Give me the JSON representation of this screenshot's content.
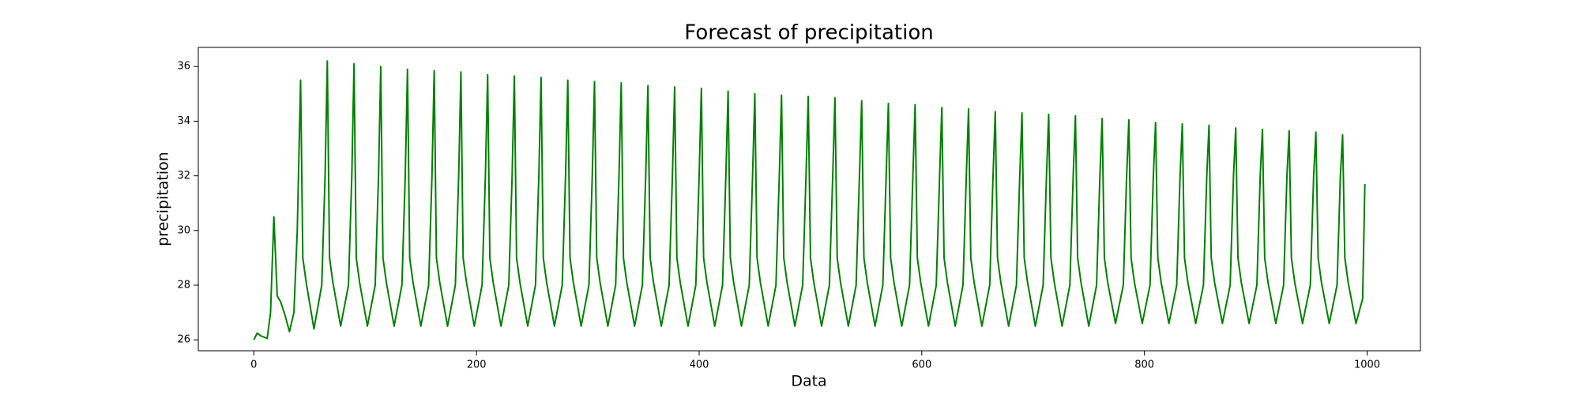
{
  "chart_data": {
    "type": "line",
    "title": "Forecast of precipitation",
    "x_label": "Data",
    "y_label": "precipitation",
    "xlim": [
      -49.9,
      1047.9
    ],
    "ylim": [
      25.6,
      36.7
    ],
    "xticks": [
      0,
      200,
      400,
      600,
      800,
      1000
    ],
    "yticks": [
      26,
      28,
      30,
      32,
      34,
      36
    ],
    "grid": false,
    "series": [
      {
        "color": "#008000",
        "x": [
          0,
          3,
          6,
          9,
          12,
          15,
          18,
          21,
          24,
          28,
          32,
          36,
          39,
          42,
          44,
          47,
          54,
          61,
          64,
          66,
          68,
          71,
          78,
          85,
          88,
          90,
          92,
          95,
          102,
          109,
          112,
          114,
          116,
          119,
          126,
          133,
          136,
          138,
          140,
          143,
          150,
          157,
          160,
          162,
          164,
          167,
          174,
          181,
          184,
          186,
          188,
          191,
          198,
          205,
          208,
          210,
          212,
          215,
          222,
          229,
          232,
          234,
          236,
          239,
          246,
          253,
          256,
          258,
          260,
          263,
          270,
          277,
          280,
          282,
          284,
          287,
          294,
          301,
          304,
          306,
          308,
          311,
          318,
          325,
          328,
          330,
          332,
          335,
          342,
          349,
          352,
          354,
          356,
          359,
          366,
          373,
          376,
          378,
          380,
          383,
          390,
          397,
          400,
          402,
          404,
          407,
          414,
          421,
          424,
          426,
          428,
          431,
          438,
          445,
          448,
          450,
          452,
          455,
          462,
          469,
          472,
          474,
          476,
          479,
          486,
          493,
          496,
          498,
          500,
          503,
          510,
          517,
          520,
          522,
          524,
          527,
          534,
          541,
          544,
          546,
          548,
          551,
          558,
          565,
          568,
          570,
          572,
          575,
          582,
          589,
          592,
          594,
          596,
          599,
          606,
          613,
          616,
          618,
          620,
          623,
          630,
          637,
          640,
          642,
          644,
          647,
          654,
          661,
          664,
          666,
          668,
          671,
          678,
          685,
          688,
          690,
          692,
          695,
          702,
          709,
          712,
          714,
          716,
          719,
          726,
          733,
          736,
          738,
          740,
          743,
          750,
          757,
          760,
          762,
          764,
          767,
          774,
          781,
          784,
          786,
          788,
          791,
          798,
          805,
          808,
          810,
          812,
          815,
          822,
          829,
          832,
          834,
          836,
          839,
          846,
          853,
          856,
          858,
          860,
          863,
          870,
          877,
          880,
          882,
          884,
          887,
          894,
          901,
          904,
          906,
          908,
          911,
          918,
          925,
          928,
          930,
          932,
          935,
          942,
          949,
          952,
          954,
          956,
          959,
          966,
          973,
          976,
          978,
          980,
          983,
          990,
          996,
          998
        ],
        "values": [
          26.0,
          26.25,
          26.15,
          26.1,
          26.05,
          27.0,
          30.5,
          27.6,
          27.4,
          26.9,
          26.3,
          27.0,
          30.0,
          35.5,
          29.0,
          28.1,
          26.4,
          28.0,
          32.0,
          36.2,
          29.0,
          28.1,
          26.5,
          28.0,
          32.0,
          36.1,
          29.0,
          28.1,
          26.5,
          28.0,
          32.0,
          36.0,
          29.0,
          28.1,
          26.5,
          28.0,
          32.0,
          35.9,
          29.0,
          28.1,
          26.5,
          28.0,
          32.0,
          35.85,
          29.0,
          28.1,
          26.5,
          28.0,
          32.0,
          35.8,
          29.0,
          28.1,
          26.5,
          28.0,
          32.0,
          35.7,
          29.0,
          28.1,
          26.5,
          28.0,
          32.0,
          35.65,
          29.0,
          28.1,
          26.5,
          28.0,
          32.0,
          35.6,
          29.0,
          28.1,
          26.5,
          28.0,
          32.0,
          35.5,
          29.0,
          28.1,
          26.5,
          28.0,
          32.0,
          35.45,
          29.0,
          28.1,
          26.5,
          28.0,
          32.0,
          35.4,
          29.0,
          28.1,
          26.5,
          28.0,
          32.0,
          35.3,
          29.0,
          28.1,
          26.5,
          28.0,
          32.0,
          35.25,
          29.0,
          28.1,
          26.5,
          28.0,
          32.0,
          35.2,
          29.0,
          28.1,
          26.5,
          28.0,
          32.0,
          35.1,
          29.0,
          28.1,
          26.5,
          28.0,
          32.0,
          35.0,
          29.0,
          28.1,
          26.5,
          28.0,
          32.0,
          34.95,
          29.0,
          28.1,
          26.5,
          28.0,
          32.0,
          34.9,
          29.0,
          28.1,
          26.5,
          28.0,
          32.0,
          34.85,
          29.0,
          28.1,
          26.5,
          28.0,
          32.0,
          34.75,
          29.0,
          28.1,
          26.5,
          28.0,
          32.0,
          34.65,
          29.0,
          28.1,
          26.5,
          28.0,
          32.0,
          34.6,
          29.0,
          28.1,
          26.5,
          28.0,
          32.0,
          34.5,
          29.0,
          28.1,
          26.5,
          28.0,
          32.0,
          34.45,
          29.0,
          28.1,
          26.5,
          28.0,
          32.0,
          34.35,
          29.0,
          28.1,
          26.5,
          28.0,
          32.0,
          34.3,
          29.0,
          28.1,
          26.5,
          28.0,
          32.0,
          34.25,
          29.0,
          28.1,
          26.5,
          28.0,
          32.0,
          34.2,
          29.0,
          28.1,
          26.5,
          28.0,
          32.0,
          34.1,
          29.0,
          28.1,
          26.6,
          28.0,
          32.0,
          34.05,
          29.0,
          28.1,
          26.6,
          28.0,
          32.0,
          33.95,
          29.0,
          28.1,
          26.6,
          28.0,
          32.0,
          33.9,
          29.0,
          28.1,
          26.6,
          28.0,
          32.0,
          33.85,
          29.0,
          28.1,
          26.6,
          28.0,
          32.0,
          33.75,
          29.0,
          28.1,
          26.6,
          28.0,
          32.0,
          33.7,
          29.0,
          28.1,
          26.6,
          28.0,
          32.0,
          33.65,
          29.0,
          28.1,
          26.6,
          28.0,
          32.0,
          33.6,
          29.0,
          28.1,
          26.6,
          28.0,
          32.0,
          33.5,
          29.0,
          28.1,
          26.6,
          27.5,
          31.7
        ]
      }
    ]
  }
}
